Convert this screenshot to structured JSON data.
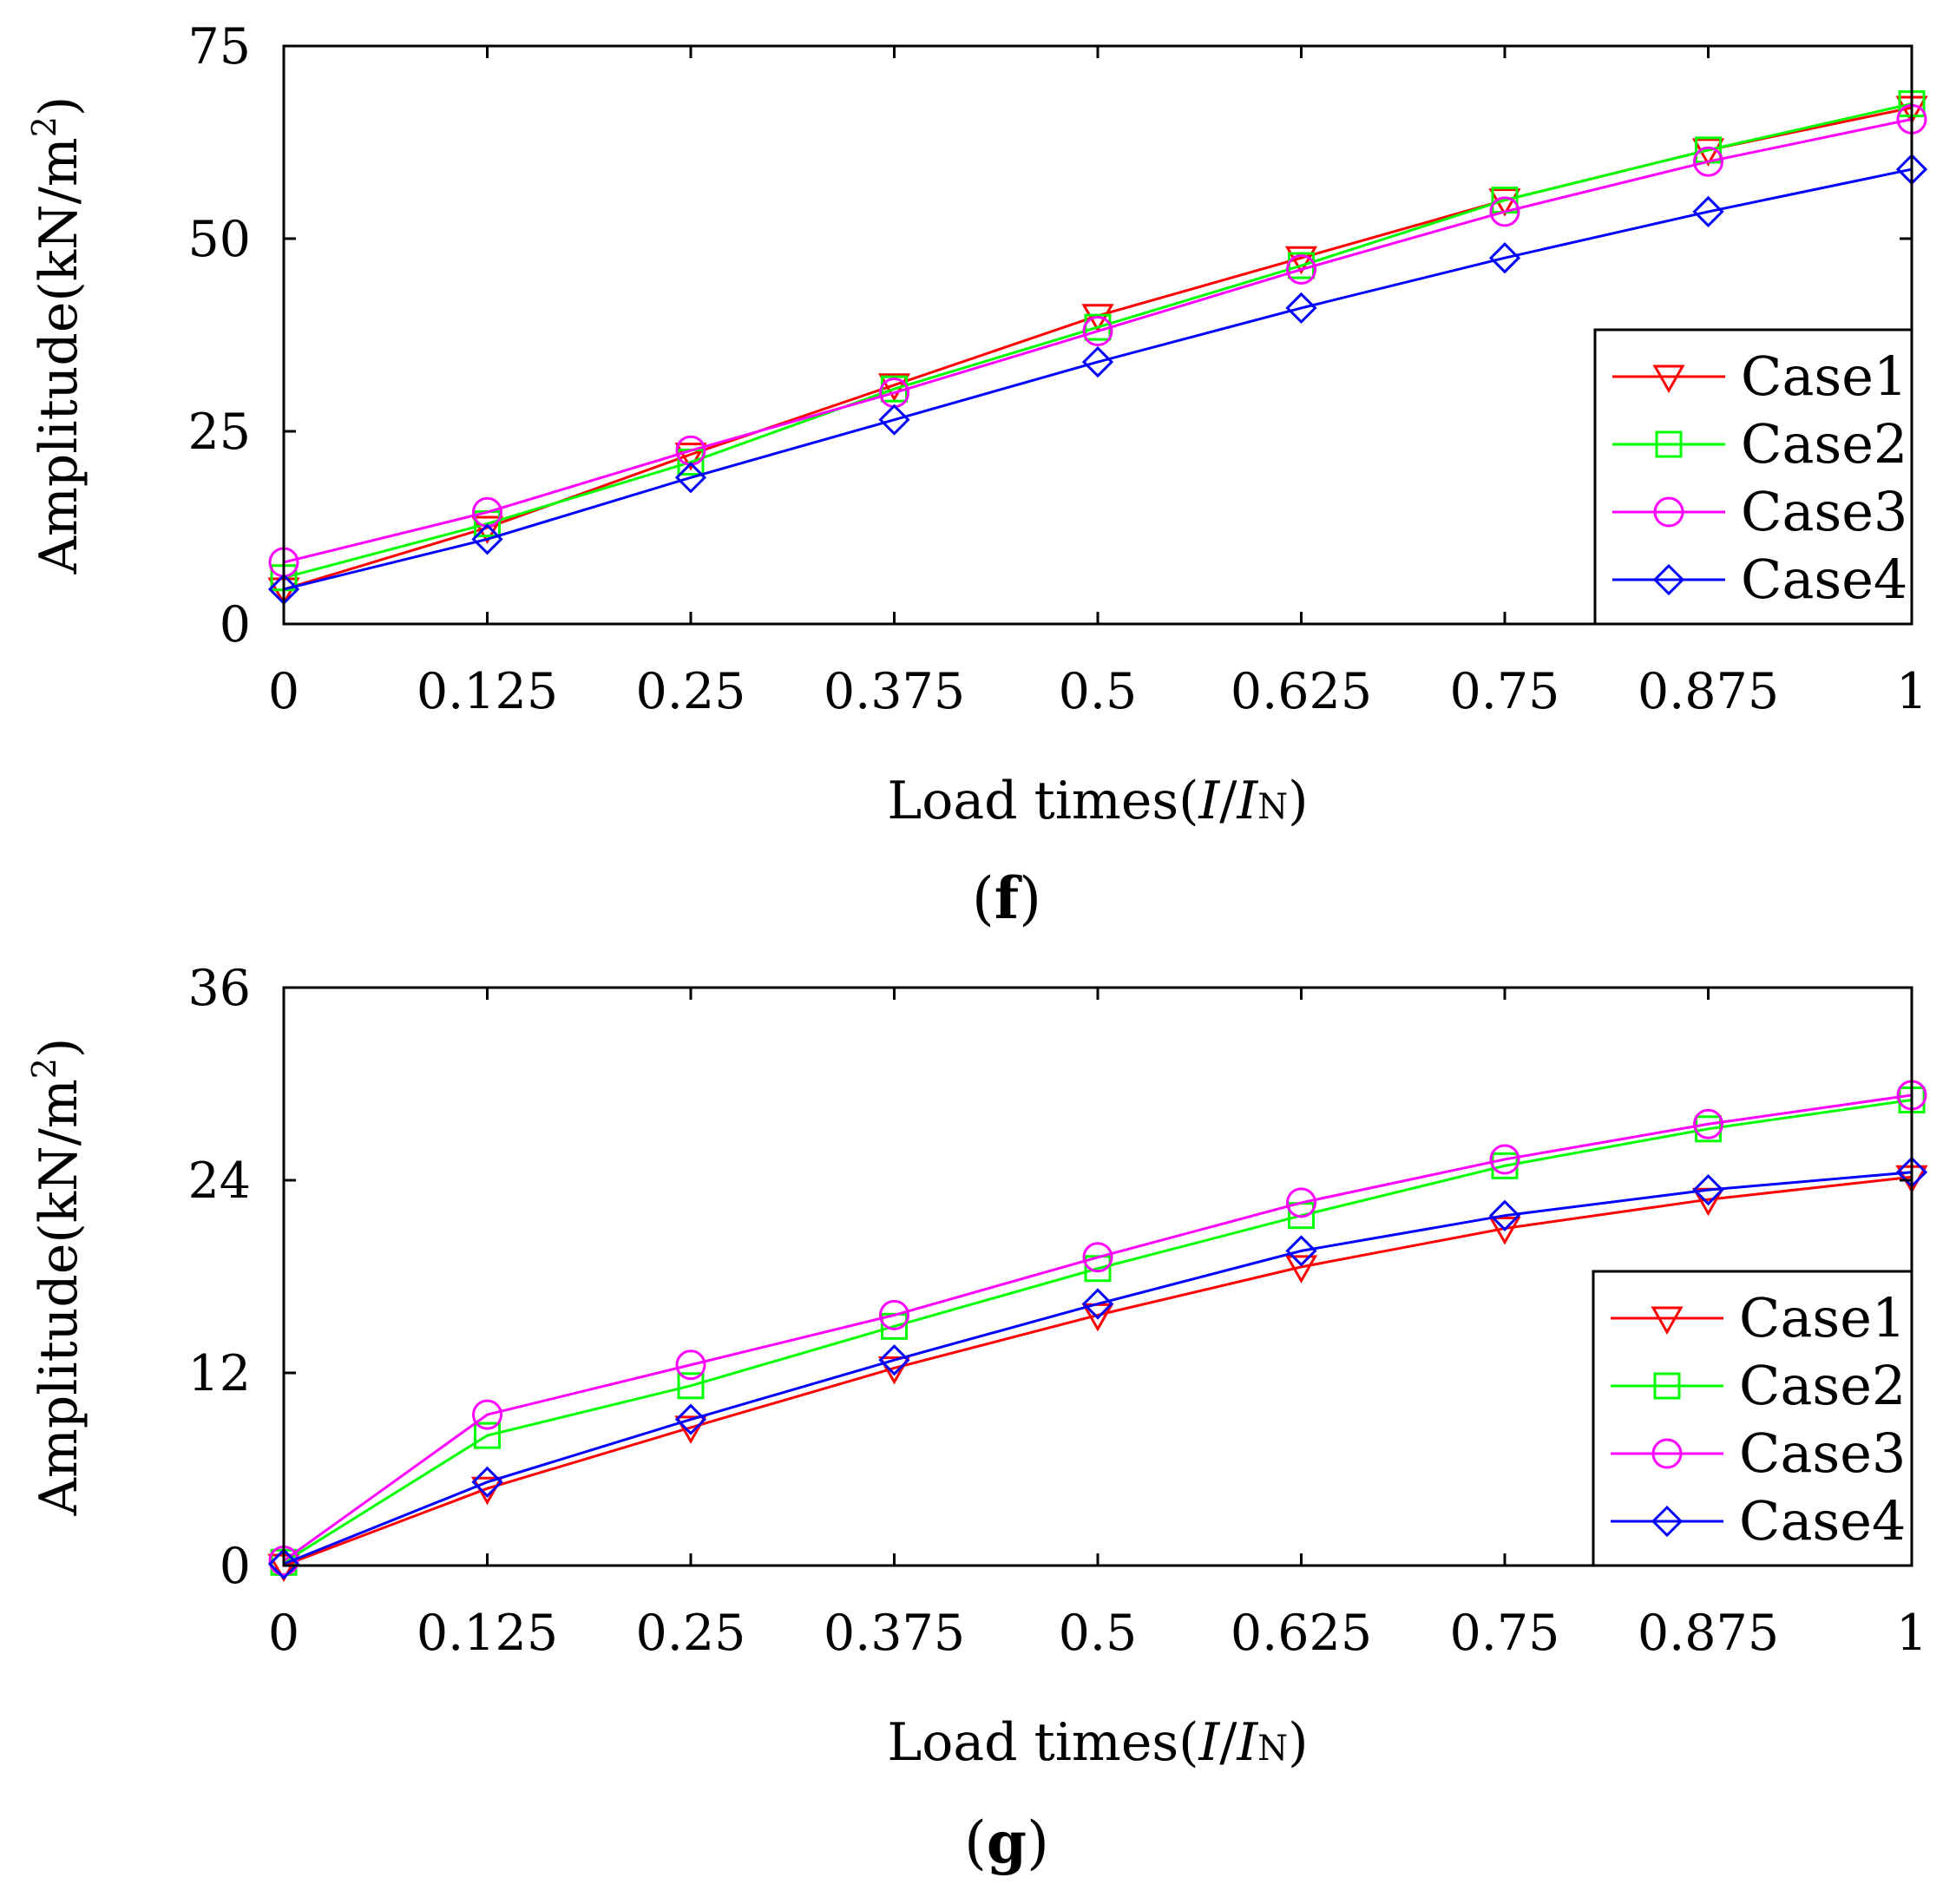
{
  "chart_data": [
    {
      "type": "line",
      "panel_label": "f",
      "title": "",
      "xlabel": {
        "prefix": "Load times(",
        "i": "I",
        "slash": "/",
        "iN_I": "I",
        "iN_sub": "N",
        "suffix": ")"
      },
      "ylabel": {
        "base": "Amplitude(kN/m",
        "sup": "2",
        "close": ")"
      },
      "categories": [
        "0",
        "0.125",
        "0.25",
        "0.375",
        "0.5",
        "0.625",
        "0.75",
        "0.875",
        "1"
      ],
      "x": [
        0,
        0.125,
        0.25,
        0.375,
        0.5,
        0.625,
        0.75,
        0.875,
        1
      ],
      "ylim": [
        0,
        75
      ],
      "yticks": [
        "0",
        "25",
        "50",
        "75"
      ],
      "legend_position": "bottom-right",
      "series": [
        {
          "name": "Case1",
          "color": "#ff0000",
          "marker": "triangle-down",
          "values": [
            4.5,
            12.5,
            22,
            31,
            40,
            47.5,
            55,
            61.5,
            67
          ]
        },
        {
          "name": "Case2",
          "color": "#00ff00",
          "marker": "square",
          "values": [
            6,
            13,
            21,
            30.5,
            38.5,
            46.5,
            55,
            61.5,
            67.5
          ]
        },
        {
          "name": "Case3",
          "color": "#ff00ff",
          "marker": "circle",
          "values": [
            8,
            14.5,
            22.5,
            30,
            38,
            46,
            53.5,
            60,
            65.5
          ]
        },
        {
          "name": "Case4",
          "color": "#0000ff",
          "marker": "diamond",
          "values": [
            4.5,
            11,
            19,
            26.5,
            34,
            41,
            47.5,
            53.5,
            59
          ]
        }
      ]
    },
    {
      "type": "line",
      "panel_label": "g",
      "title": "",
      "xlabel": {
        "prefix": "Load times(",
        "i": "I",
        "slash": "/",
        "iN_I": "I",
        "iN_sub": "N",
        "suffix": ")"
      },
      "ylabel": {
        "base": "Amplitude(kN/m",
        "sup": "2",
        "close": ")"
      },
      "categories": [
        "0",
        "0.125",
        "0.25",
        "0.375",
        "0.5",
        "0.625",
        "0.75",
        "0.875",
        "1"
      ],
      "x": [
        0,
        0.125,
        0.25,
        0.375,
        0.5,
        0.625,
        0.75,
        0.875,
        1
      ],
      "ylim": [
        0,
        36
      ],
      "yticks": [
        "0",
        "12",
        "24",
        "36"
      ],
      "legend_position": "bottom-right",
      "series": [
        {
          "name": "Case1",
          "color": "#ff0000",
          "marker": "triangle-down",
          "values": [
            0,
            4.8,
            8.6,
            12.3,
            15.6,
            18.6,
            21,
            22.8,
            24.2
          ]
        },
        {
          "name": "Case2",
          "color": "#00ff00",
          "marker": "square",
          "values": [
            0.2,
            8.1,
            11.2,
            14.9,
            18.5,
            21.8,
            24.9,
            27.2,
            29
          ]
        },
        {
          "name": "Case3",
          "color": "#ff00ff",
          "marker": "circle",
          "values": [
            0.3,
            9.4,
            12.5,
            15.6,
            19.2,
            22.6,
            25.3,
            27.5,
            29.3
          ]
        },
        {
          "name": "Case4",
          "color": "#0000ff",
          "marker": "diamond",
          "values": [
            0.1,
            5.2,
            9.1,
            12.8,
            16.3,
            19.6,
            21.8,
            23.4,
            24.5
          ]
        }
      ]
    }
  ]
}
